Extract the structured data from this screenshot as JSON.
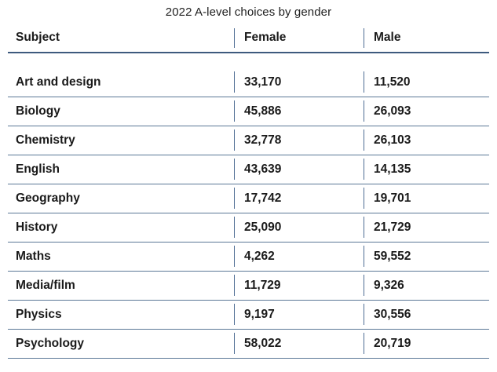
{
  "title": "2022 A-level choices by gender",
  "table": {
    "columns": [
      "Subject",
      "Female",
      "Male"
    ],
    "rows": [
      {
        "subject": "Art and design",
        "female": "33,170",
        "male": "11,520"
      },
      {
        "subject": "Biology",
        "female": "45,886",
        "male": "26,093"
      },
      {
        "subject": "Chemistry",
        "female": "32,778",
        "male": "26,103"
      },
      {
        "subject": "English",
        "female": "43,639",
        "male": "14,135"
      },
      {
        "subject": "Geography",
        "female": "17,742",
        "male": "19,701"
      },
      {
        "subject": "History",
        "female": "25,090",
        "male": "21,729"
      },
      {
        "subject": "Maths",
        "female": "4,262",
        "male": "59,552"
      },
      {
        "subject": "Media/film",
        "female": "11,729",
        "male": "9,326"
      },
      {
        "subject": "Physics",
        "female": "9,197",
        "male": "30,556"
      },
      {
        "subject": "Psychology",
        "female": "58,022",
        "male": "20,719"
      }
    ]
  },
  "colors": {
    "header_rule": "#3d5a7e",
    "row_rule": "#5b7897",
    "text": "#1a1a1a"
  },
  "chart_data": {
    "type": "table",
    "title": "2022 A-level choices by gender",
    "categories": [
      "Art and design",
      "Biology",
      "Chemistry",
      "English",
      "Geography",
      "History",
      "Maths",
      "Media/film",
      "Physics",
      "Psychology"
    ],
    "series": [
      {
        "name": "Female",
        "values": [
          33170,
          45886,
          32778,
          43639,
          17742,
          25090,
          4262,
          11729,
          9197,
          58022
        ]
      },
      {
        "name": "Male",
        "values": [
          11520,
          26093,
          26103,
          14135,
          19701,
          21729,
          59552,
          9326,
          30556,
          20719
        ]
      }
    ]
  }
}
